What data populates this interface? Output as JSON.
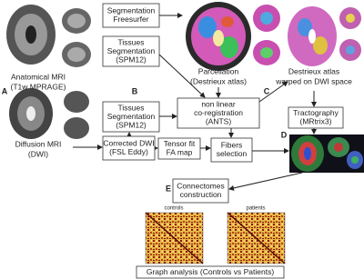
{
  "panel_labels": [
    "A",
    "B",
    "C",
    "D",
    "E"
  ],
  "boxes": {
    "segmentation": [
      "Segmentation",
      "Freesurfer"
    ],
    "tissues_top": [
      "Tissues",
      "Segmentation",
      "(SPM12)"
    ],
    "tissues_mid": [
      "Tissues",
      "Segmentation",
      "(SPM12)"
    ],
    "coregistration": [
      "non linear",
      "co-registration",
      "(ANTS)"
    ],
    "corrected_dwi": [
      "Corrected DWI",
      "(FSL Eddy)"
    ],
    "tensor_fit": [
      "Tensor fit",
      "FA map"
    ],
    "fibers": [
      "Fibers",
      "selection"
    ],
    "tractography": [
      "Tractography",
      "(MRtrix3)"
    ],
    "connectomes": [
      "Connectomes",
      "construction"
    ],
    "graph_analysis": [
      "Graph analysis (Controls vs Patients)"
    ]
  },
  "captions": {
    "anatomical": [
      "Anatomical MRI",
      "(T1w MPRAGE)"
    ],
    "diffusion": [
      "Diffusion MRI",
      "(DWI)"
    ],
    "parcellation": [
      "Parcellation",
      "(Destrieux atlas)"
    ],
    "warped": [
      "Destrieux atlas",
      "warped on DWI space"
    ]
  },
  "matrices": {
    "controls": "controls",
    "patients": "patients"
  }
}
